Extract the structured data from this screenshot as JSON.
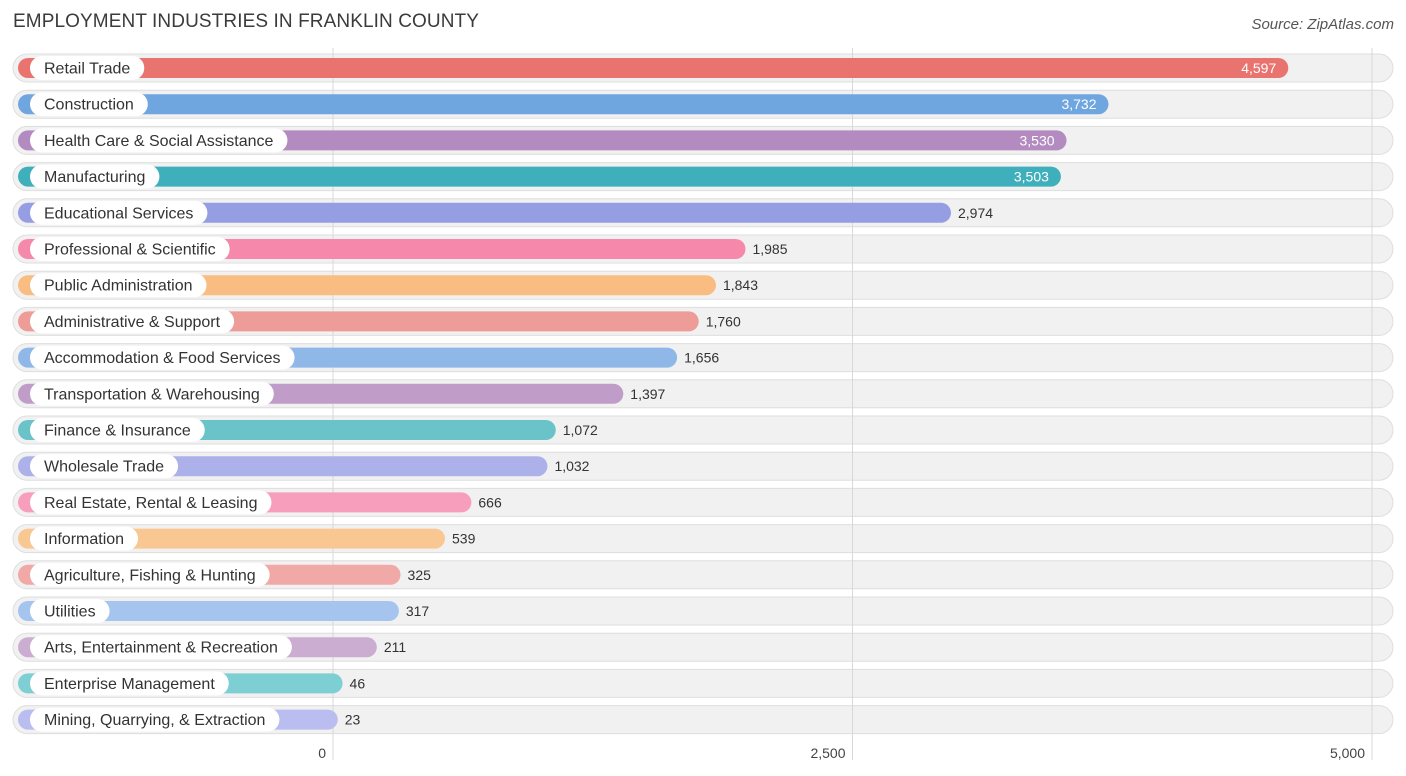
{
  "header": {
    "title": "EMPLOYMENT INDUSTRIES IN FRANKLIN COUNTY",
    "source": "Source: ZipAtlas.com"
  },
  "chart_data": {
    "type": "bar",
    "orientation": "horizontal",
    "title": "EMPLOYMENT INDUSTRIES IN FRANKLIN COUNTY",
    "xlabel": "",
    "ylabel": "",
    "xlim": [
      0,
      5000
    ],
    "ticks": [
      0,
      2500,
      5000
    ],
    "tick_labels": [
      "0",
      "2,500",
      "5,000"
    ],
    "categories": [
      "Retail Trade",
      "Construction",
      "Health Care & Social Assistance",
      "Manufacturing",
      "Educational Services",
      "Professional & Scientific",
      "Public Administration",
      "Administrative & Support",
      "Accommodation & Food Services",
      "Transportation & Warehousing",
      "Finance & Insurance",
      "Wholesale Trade",
      "Real Estate, Rental & Leasing",
      "Information",
      "Agriculture, Fishing & Hunting",
      "Utilities",
      "Arts, Entertainment & Recreation",
      "Enterprise Management",
      "Mining, Quarrying, & Extraction"
    ],
    "values": [
      4597,
      3732,
      3530,
      3503,
      2974,
      1985,
      1843,
      1760,
      1656,
      1397,
      1072,
      1032,
      666,
      539,
      325,
      317,
      211,
      46,
      23
    ],
    "value_labels": [
      "4,597",
      "3,732",
      "3,530",
      "3,503",
      "2,974",
      "1,985",
      "1,843",
      "1,760",
      "1,656",
      "1,397",
      "1,072",
      "1,032",
      "666",
      "539",
      "325",
      "317",
      "211",
      "46",
      "23"
    ],
    "colors": [
      "#e8736f",
      "#6fa6e0",
      "#b48bc0",
      "#3fb0bb",
      "#959ee3",
      "#f588ab",
      "#f9bd82",
      "#ee9c98",
      "#8fb8e8",
      "#c09dc8",
      "#69c3c9",
      "#acb1ea",
      "#f69ebb",
      "#f9c892",
      "#f1a9a7",
      "#a5c5ef",
      "#cbadd1",
      "#7ecfd4",
      "#b9bdef"
    ]
  }
}
